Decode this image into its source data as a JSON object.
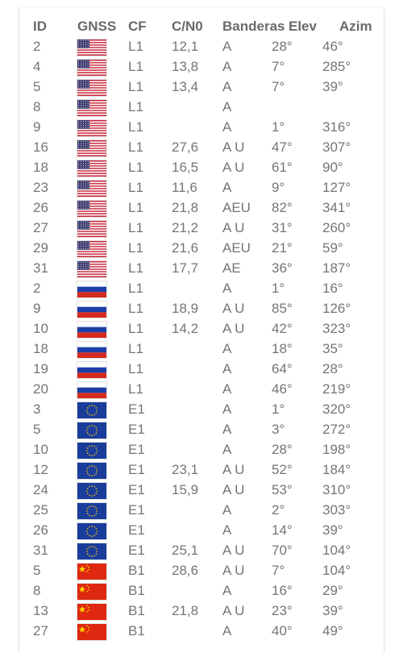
{
  "header": {
    "id": "ID",
    "gnss": "GNSS",
    "cf": "CF",
    "cn0": "C/N0",
    "banderas": "Banderas",
    "elev": "Elev",
    "azim": "Azim"
  },
  "flag_icons": {
    "us": "us-flag-icon",
    "ru": "russia-flag-icon",
    "eu": "eu-flag-icon",
    "cn": "china-flag-icon"
  },
  "rows": [
    {
      "id": "2",
      "gnss": "us",
      "cf": "L1",
      "cn0": "12,1",
      "band": "A",
      "elev": "28°",
      "azim": "46°"
    },
    {
      "id": "4",
      "gnss": "us",
      "cf": "L1",
      "cn0": "13,8",
      "band": "A",
      "elev": "7°",
      "azim": "285°"
    },
    {
      "id": "5",
      "gnss": "us",
      "cf": "L1",
      "cn0": "13,4",
      "band": "A",
      "elev": "7°",
      "azim": "39°"
    },
    {
      "id": "8",
      "gnss": "us",
      "cf": "L1",
      "cn0": "",
      "band": "A",
      "elev": "",
      "azim": ""
    },
    {
      "id": "9",
      "gnss": "us",
      "cf": "L1",
      "cn0": "",
      "band": "A",
      "elev": "1°",
      "azim": "316°"
    },
    {
      "id": "16",
      "gnss": "us",
      "cf": "L1",
      "cn0": "27,6",
      "band": "A U",
      "elev": "47°",
      "azim": "307°"
    },
    {
      "id": "18",
      "gnss": "us",
      "cf": "L1",
      "cn0": "16,5",
      "band": "A U",
      "elev": "61°",
      "azim": "90°"
    },
    {
      "id": "23",
      "gnss": "us",
      "cf": "L1",
      "cn0": "11,6",
      "band": "A",
      "elev": "9°",
      "azim": "127°"
    },
    {
      "id": "26",
      "gnss": "us",
      "cf": "L1",
      "cn0": "21,8",
      "band": "AEU",
      "elev": "82°",
      "azim": "341°"
    },
    {
      "id": "27",
      "gnss": "us",
      "cf": "L1",
      "cn0": "21,2",
      "band": "A U",
      "elev": "31°",
      "azim": "260°"
    },
    {
      "id": "29",
      "gnss": "us",
      "cf": "L1",
      "cn0": "21,6",
      "band": "AEU",
      "elev": "21°",
      "azim": "59°"
    },
    {
      "id": "31",
      "gnss": "us",
      "cf": "L1",
      "cn0": "17,7",
      "band": "AE",
      "elev": "36°",
      "azim": "187°"
    },
    {
      "id": "2",
      "gnss": "ru",
      "cf": "L1",
      "cn0": "",
      "band": "A",
      "elev": "1°",
      "azim": "16°"
    },
    {
      "id": "9",
      "gnss": "ru",
      "cf": "L1",
      "cn0": "18,9",
      "band": "A U",
      "elev": "85°",
      "azim": "126°"
    },
    {
      "id": "10",
      "gnss": "ru",
      "cf": "L1",
      "cn0": "14,2",
      "band": "A U",
      "elev": "42°",
      "azim": "323°"
    },
    {
      "id": "18",
      "gnss": "ru",
      "cf": "L1",
      "cn0": "",
      "band": "A",
      "elev": "18°",
      "azim": "35°"
    },
    {
      "id": "19",
      "gnss": "ru",
      "cf": "L1",
      "cn0": "",
      "band": "A",
      "elev": "64°",
      "azim": "28°"
    },
    {
      "id": "20",
      "gnss": "ru",
      "cf": "L1",
      "cn0": "",
      "band": "A",
      "elev": "46°",
      "azim": "219°"
    },
    {
      "id": "3",
      "gnss": "eu",
      "cf": "E1",
      "cn0": "",
      "band": "A",
      "elev": "1°",
      "azim": "320°"
    },
    {
      "id": "5",
      "gnss": "eu",
      "cf": "E1",
      "cn0": "",
      "band": "A",
      "elev": "3°",
      "azim": "272°"
    },
    {
      "id": "10",
      "gnss": "eu",
      "cf": "E1",
      "cn0": "",
      "band": "A",
      "elev": "28°",
      "azim": "198°"
    },
    {
      "id": "12",
      "gnss": "eu",
      "cf": "E1",
      "cn0": "23,1",
      "band": "A U",
      "elev": "52°",
      "azim": "184°"
    },
    {
      "id": "24",
      "gnss": "eu",
      "cf": "E1",
      "cn0": "15,9",
      "band": "A U",
      "elev": "53°",
      "azim": "310°"
    },
    {
      "id": "25",
      "gnss": "eu",
      "cf": "E1",
      "cn0": "",
      "band": "A",
      "elev": "2°",
      "azim": "303°"
    },
    {
      "id": "26",
      "gnss": "eu",
      "cf": "E1",
      "cn0": "",
      "band": "A",
      "elev": "14°",
      "azim": "39°"
    },
    {
      "id": "31",
      "gnss": "eu",
      "cf": "E1",
      "cn0": "25,1",
      "band": "A U",
      "elev": "70°",
      "azim": "104°"
    },
    {
      "id": "5",
      "gnss": "cn",
      "cf": "B1",
      "cn0": "28,6",
      "band": "A U",
      "elev": "7°",
      "azim": "104°"
    },
    {
      "id": "8",
      "gnss": "cn",
      "cf": "B1",
      "cn0": "",
      "band": "A",
      "elev": "16°",
      "azim": "29°"
    },
    {
      "id": "13",
      "gnss": "cn",
      "cf": "B1",
      "cn0": "21,8",
      "band": "A U",
      "elev": "23°",
      "azim": "39°"
    },
    {
      "id": "27",
      "gnss": "cn",
      "cf": "B1",
      "cn0": "",
      "band": "A",
      "elev": "40°",
      "azim": "49°"
    }
  ]
}
